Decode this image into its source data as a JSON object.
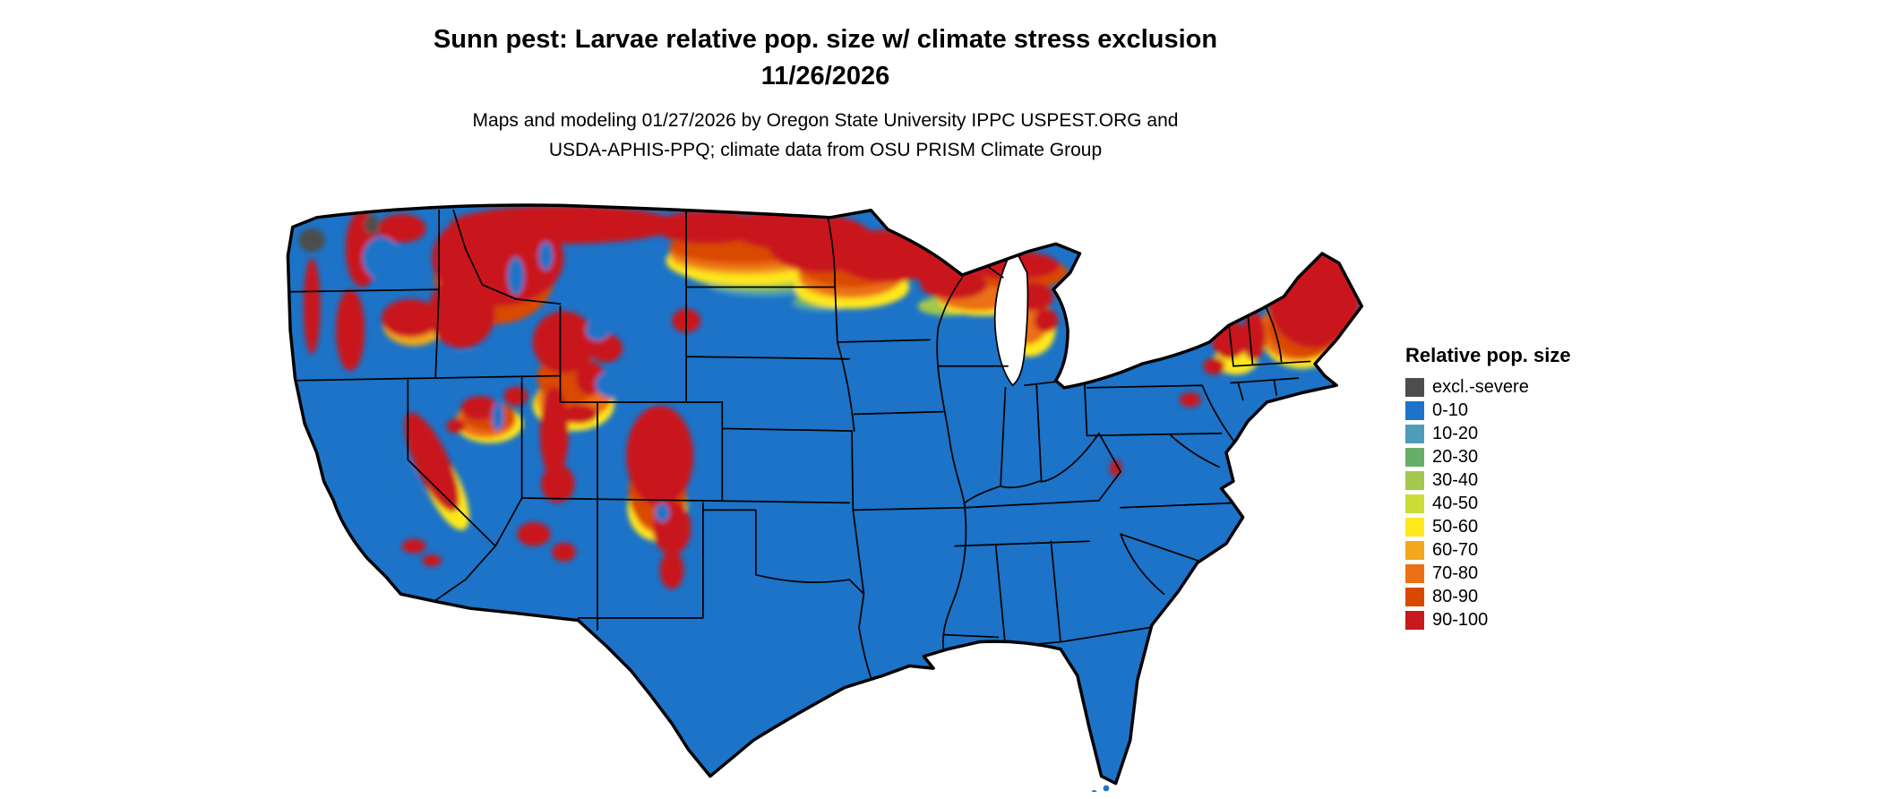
{
  "header": {
    "title_line1": "Sunn pest: Larvae relative pop. size w/ climate stress exclusion",
    "title_line2": "11/26/2026",
    "subtitle_line1": "Maps and modeling 01/27/2026 by Oregon State University IPPC USPEST.ORG and",
    "subtitle_line2": "USDA-APHIS-PPQ; climate data from OSU PRISM Climate Group"
  },
  "map": {
    "region": "Contiguous United States"
  },
  "legend": {
    "title": "Relative pop. size",
    "entries": [
      {
        "label": "excl.-severe",
        "color": "#4D4D4D"
      },
      {
        "label": "0-10",
        "color": "#1C73C7"
      },
      {
        "label": "10-20",
        "color": "#4D9DB8"
      },
      {
        "label": "20-30",
        "color": "#67AE6B"
      },
      {
        "label": "30-40",
        "color": "#A3C84B"
      },
      {
        "label": "40-50",
        "color": "#CBDC37"
      },
      {
        "label": "50-60",
        "color": "#FFE81E"
      },
      {
        "label": "60-70",
        "color": "#F2A81C"
      },
      {
        "label": "70-80",
        "color": "#EC7014"
      },
      {
        "label": "80-90",
        "color": "#D94801"
      },
      {
        "label": "90-100",
        "color": "#C9181E"
      }
    ]
  }
}
